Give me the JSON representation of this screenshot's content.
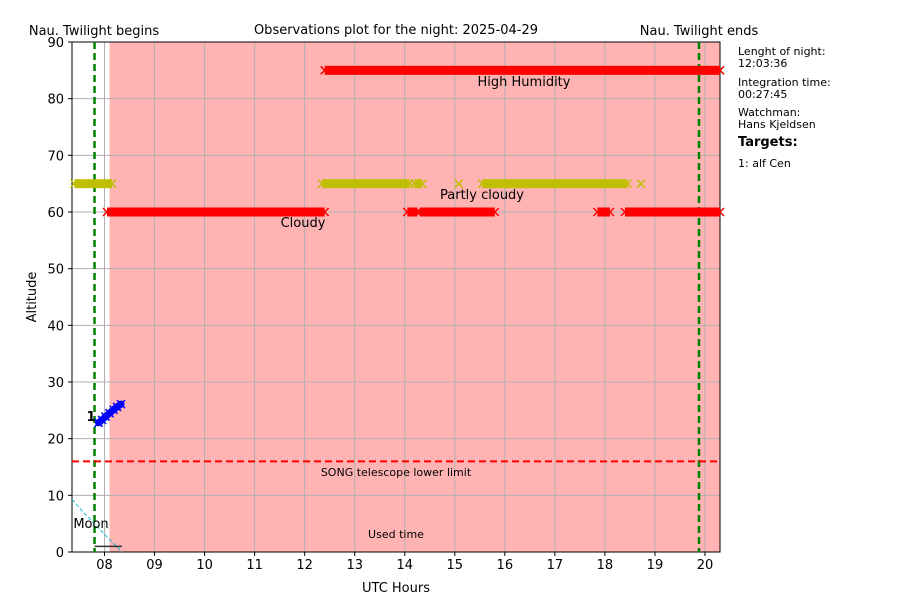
{
  "chart_data": {
    "type": "scatter",
    "title": "Observations plot for the night: 2025-04-29",
    "xlabel": "UTC Hours",
    "ylabel": "Altitude",
    "xlim": [
      7.35,
      20.3
    ],
    "ylim": [
      0,
      90
    ],
    "xticks": [
      8,
      9,
      10,
      11,
      12,
      13,
      14,
      15,
      16,
      17,
      18,
      19,
      20
    ],
    "xtick_labels": [
      "08",
      "09",
      "10",
      "11",
      "12",
      "13",
      "14",
      "15",
      "16",
      "17",
      "18",
      "19",
      "20"
    ],
    "yticks": [
      0,
      10,
      20,
      30,
      40,
      50,
      60,
      70,
      80,
      90
    ],
    "grid": true,
    "twilight": {
      "begin": 7.8,
      "end": 19.88,
      "begin_label": "Nau. Twilight begins",
      "end_label": "Nau. Twilight ends",
      "color": "#008000"
    },
    "bad_weather_span": {
      "start": 8.1,
      "end": 20.3,
      "color": "#ffb3b3"
    },
    "telescope_limit": {
      "altitude": 16,
      "label": "SONG telescope lower limit",
      "color": "#ff0000"
    },
    "weather_series": [
      {
        "label": "High Humidity",
        "altitude": 85,
        "color": "#ff0000",
        "segments": [
          [
            12.4,
            20.3
          ]
        ]
      },
      {
        "label": "Partly cloudy",
        "altitude": 65,
        "color": "#bfbf00",
        "segments": [
          [
            7.4,
            8.15
          ],
          [
            12.35,
            14.1
          ],
          [
            14.2,
            14.35
          ],
          [
            15.55,
            18.0
          ],
          [
            18.0,
            18.45
          ]
        ],
        "isolated_points": [
          15.08,
          18.72
        ]
      },
      {
        "label": "Cloudy",
        "altitude": 60,
        "color": "#ff0000",
        "segments": [
          [
            8.05,
            12.4
          ],
          [
            14.05,
            14.25
          ],
          [
            14.3,
            15.8
          ],
          [
            17.85,
            18.1
          ],
          [
            18.4,
            20.3
          ]
        ]
      }
    ],
    "target_series": [
      {
        "name": "1",
        "color": "#0000ff",
        "x": [
          7.88,
          7.95,
          8.02,
          8.1,
          8.18,
          8.25,
          8.33
        ],
        "y": [
          22.8,
          23.3,
          23.9,
          24.5,
          25.1,
          25.6,
          26.1
        ]
      }
    ],
    "moon": {
      "label": "Moon",
      "color": "#17becf",
      "x": [
        7.35,
        7.6,
        7.85,
        8.1,
        8.35
      ],
      "y": [
        9.3,
        6.8,
        4.5,
        2.2,
        0
      ]
    },
    "used_time": {
      "label": "Used time",
      "x": [
        7.8,
        8.35
      ],
      "y": 1
    }
  },
  "sidebar": {
    "night_length_label": "Lenght of night:",
    "night_length_value": "12:03:36",
    "integration_label": "Integration time:",
    "integration_value": "00:27:45",
    "watchman_label": "Watchman:",
    "watchman_value": "Hans Kjeldsen",
    "targets_heading": "Targets:",
    "targets": [
      "1: alf Cen"
    ]
  }
}
